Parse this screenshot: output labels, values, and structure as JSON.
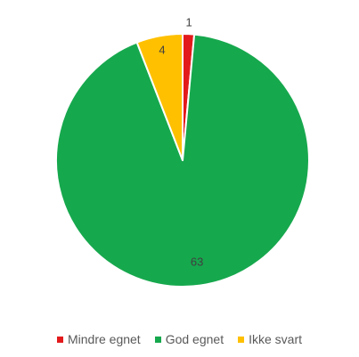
{
  "chart_data": {
    "type": "pie",
    "categories": [
      "Mindre egnet",
      "God egnet",
      "Ikke svart"
    ],
    "values": [
      1,
      63,
      4
    ],
    "colors": [
      "#e31a1c",
      "#16a84d",
      "#ffc000"
    ],
    "data_labels": [
      "1",
      "63",
      "4"
    ],
    "start_angle_deg": 0,
    "direction": "clockwise",
    "slice_border_color": "#ffffff",
    "legend_position": "bottom",
    "title": ""
  }
}
